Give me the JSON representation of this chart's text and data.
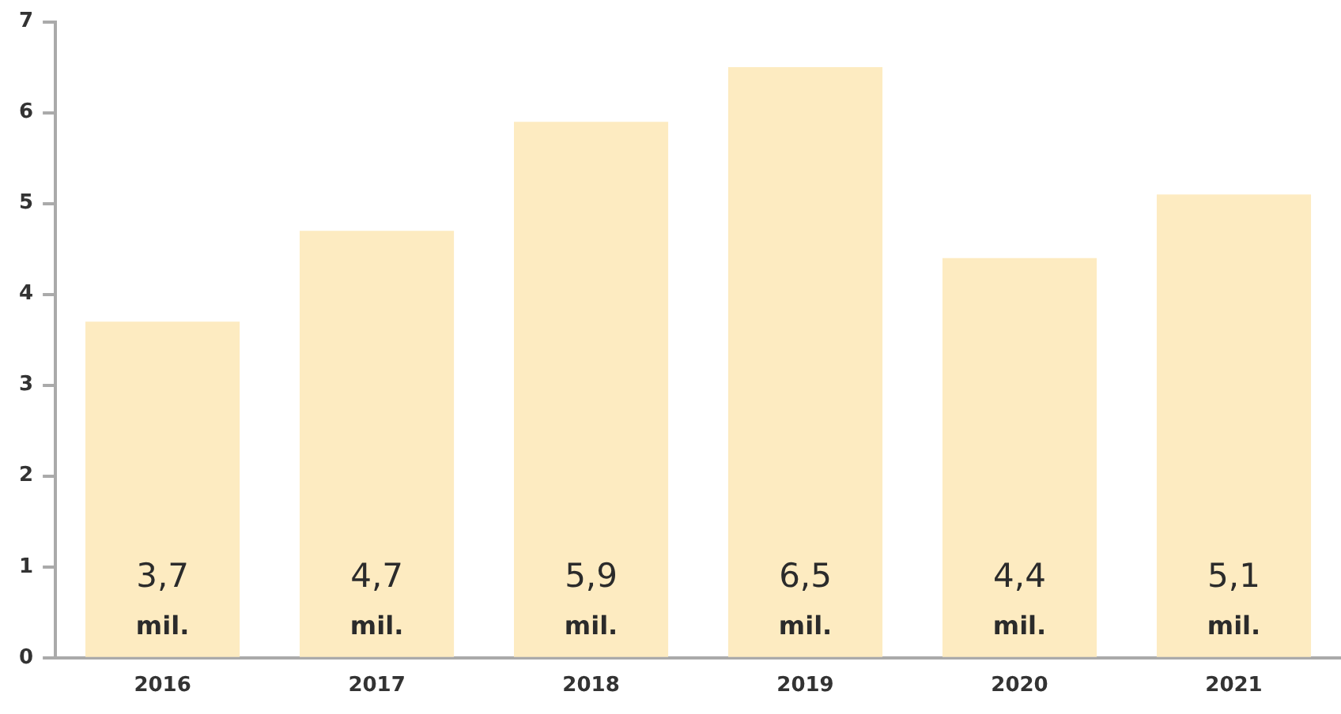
{
  "chart_data": {
    "type": "bar",
    "categories": [
      "2016",
      "2017",
      "2018",
      "2019",
      "2020",
      "2021"
    ],
    "values": [
      3.7,
      4.7,
      5.9,
      6.5,
      4.4,
      5.1
    ],
    "value_labels": [
      "3,7 mil.",
      "4,7 mil.",
      "5,9 mil.",
      "6,5 mil.",
      "4,4 mil.",
      "5,1 mil."
    ],
    "color": "#fdebc1",
    "ylim": [
      0,
      7
    ],
    "yticks": [
      0,
      1,
      2,
      3,
      4,
      5,
      6,
      7
    ],
    "grid": false,
    "legend": false
  }
}
